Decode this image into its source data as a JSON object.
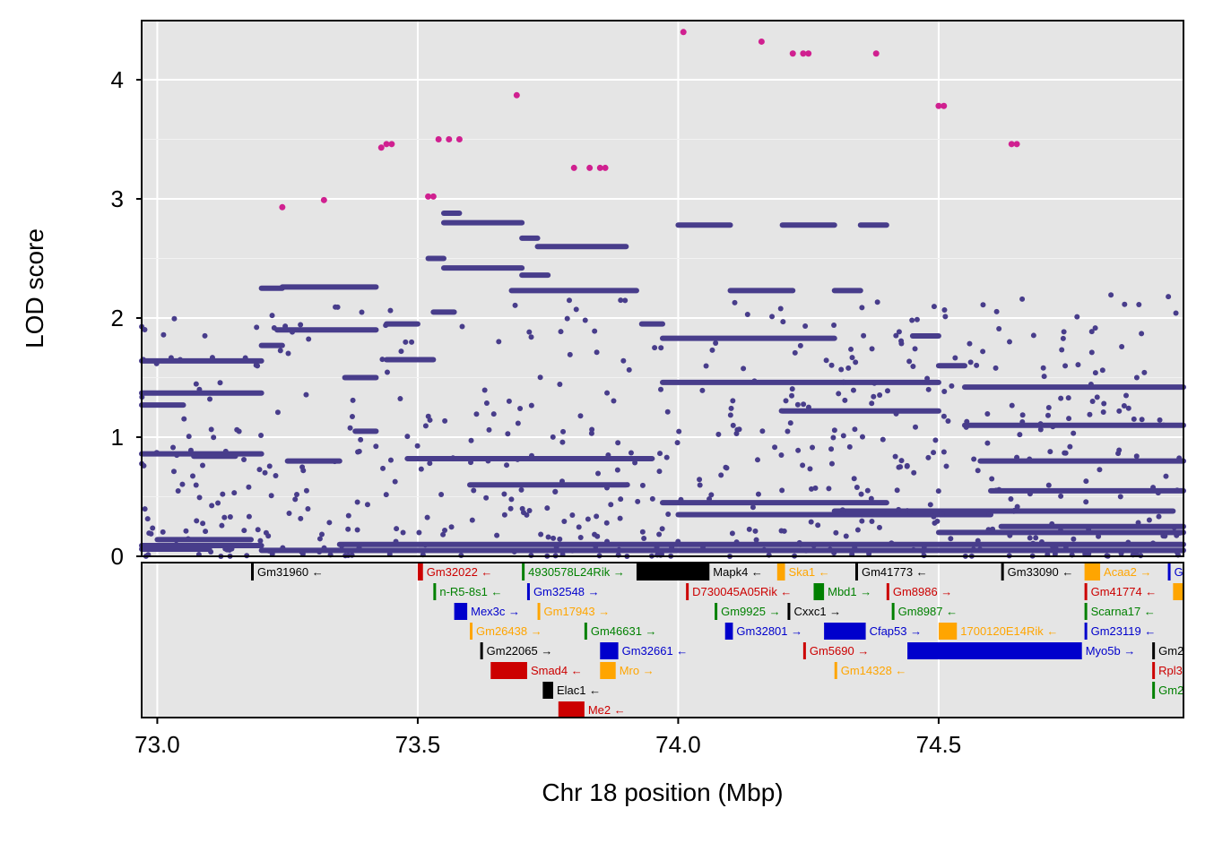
{
  "chart_data": {
    "type": "scatter",
    "title": "",
    "xlabel": "Chr 18 position (Mbp)",
    "ylabel": "LOD score",
    "xlim": [
      72.97,
      74.97
    ],
    "ylim": [
      0,
      4.5
    ],
    "x_ticks": [
      "73.0",
      "73.5",
      "74.0",
      "74.5"
    ],
    "x_tick_values": [
      73.0,
      73.5,
      74.0,
      74.5
    ],
    "y_ticks": [
      "0",
      "1",
      "2",
      "3",
      "4"
    ],
    "y_tick_values": [
      0,
      1,
      2,
      3,
      4
    ],
    "grid": true,
    "colors": {
      "points": "#483d8b",
      "peak_points": "#d02090",
      "panel_bg": "#e5e5e5",
      "grid": "#ffffff"
    },
    "peak_points": [
      [
        73.24,
        2.93
      ],
      [
        73.32,
        2.99
      ],
      [
        73.43,
        3.43
      ],
      [
        73.44,
        3.46
      ],
      [
        73.45,
        3.46
      ],
      [
        73.52,
        3.02
      ],
      [
        73.53,
        3.02
      ],
      [
        73.54,
        3.5
      ],
      [
        73.56,
        3.5
      ],
      [
        73.58,
        3.5
      ],
      [
        73.69,
        3.87
      ],
      [
        73.8,
        3.26
      ],
      [
        73.83,
        3.26
      ],
      [
        73.85,
        3.26
      ],
      [
        73.86,
        3.26
      ],
      [
        74.01,
        4.4
      ],
      [
        74.16,
        4.32
      ],
      [
        74.22,
        4.22
      ],
      [
        74.24,
        4.22
      ],
      [
        74.25,
        4.22
      ],
      [
        74.38,
        4.22
      ],
      [
        74.5,
        3.78
      ],
      [
        74.51,
        3.78
      ],
      [
        74.64,
        3.46
      ],
      [
        74.65,
        3.46
      ]
    ],
    "bands": [
      [
        72.97,
        73.2,
        1.64
      ],
      [
        72.97,
        73.2,
        1.37
      ],
      [
        72.97,
        73.2,
        0.86
      ],
      [
        72.97,
        73.2,
        0.09
      ],
      [
        72.97,
        73.1,
        0.06
      ],
      [
        73.0,
        73.18,
        0.14
      ],
      [
        72.97,
        73.05,
        1.27
      ],
      [
        73.07,
        73.15,
        0.84
      ],
      [
        73.2,
        73.24,
        2.25
      ],
      [
        73.24,
        73.42,
        2.26
      ],
      [
        73.23,
        73.42,
        1.9
      ],
      [
        73.2,
        73.24,
        1.77
      ],
      [
        73.25,
        73.35,
        0.8
      ],
      [
        73.36,
        73.42,
        1.5
      ],
      [
        73.38,
        73.42,
        1.05
      ],
      [
        73.44,
        73.5,
        1.95
      ],
      [
        73.44,
        73.53,
        1.65
      ],
      [
        73.53,
        73.57,
        2.05
      ],
      [
        73.52,
        73.55,
        2.5
      ],
      [
        73.55,
        73.58,
        2.88
      ],
      [
        73.55,
        73.7,
        2.8
      ],
      [
        73.55,
        73.7,
        2.42
      ],
      [
        73.7,
        73.73,
        2.67
      ],
      [
        73.73,
        73.9,
        2.6
      ],
      [
        73.68,
        73.92,
        2.23
      ],
      [
        73.7,
        73.75,
        2.36
      ],
      [
        73.93,
        73.97,
        1.95
      ],
      [
        73.97,
        74.3,
        1.83
      ],
      [
        73.97,
        74.5,
        1.46
      ],
      [
        74.0,
        74.1,
        2.78
      ],
      [
        74.1,
        74.22,
        2.23
      ],
      [
        74.2,
        74.3,
        2.78
      ],
      [
        74.2,
        74.5,
        1.22
      ],
      [
        74.3,
        74.35,
        2.23
      ],
      [
        74.35,
        74.4,
        2.78
      ],
      [
        74.45,
        74.5,
        1.85
      ],
      [
        74.5,
        74.55,
        1.6
      ],
      [
        74.55,
        74.97,
        1.42
      ],
      [
        74.55,
        74.97,
        1.1
      ],
      [
        74.5,
        74.97,
        0.2
      ],
      [
        74.58,
        74.97,
        0.8
      ],
      [
        73.35,
        74.97,
        0.1
      ],
      [
        73.2,
        74.97,
        0.05
      ],
      [
        73.97,
        74.4,
        0.45
      ],
      [
        74.0,
        74.6,
        0.35
      ],
      [
        73.6,
        73.9,
        0.6
      ],
      [
        73.48,
        73.95,
        0.82
      ],
      [
        74.6,
        74.97,
        0.55
      ],
      [
        74.62,
        74.97,
        0.25
      ],
      [
        74.3,
        74.95,
        0.38
      ]
    ]
  },
  "genes": [
    {
      "name": "Gm31960",
      "start": 73.18,
      "end": 73.185,
      "row": 0,
      "dir": "←",
      "color": "#000000"
    },
    {
      "name": "Gm32022",
      "start": 73.5,
      "end": 73.51,
      "row": 0,
      "dir": "←",
      "color": "#cc0000"
    },
    {
      "name": "4930578L24Rik",
      "start": 73.7,
      "end": 73.705,
      "row": 0,
      "dir": "→",
      "color": "#008000"
    },
    {
      "name": "Mapk4",
      "start": 73.92,
      "end": 74.06,
      "row": 0,
      "dir": "←",
      "color": "#000000"
    },
    {
      "name": "Ska1",
      "start": 74.19,
      "end": 74.205,
      "row": 0,
      "dir": "←",
      "color": "#ffa500"
    },
    {
      "name": "Gm41773",
      "start": 74.34,
      "end": 74.345,
      "row": 0,
      "dir": "←",
      "color": "#000000"
    },
    {
      "name": "Gm33090",
      "start": 74.62,
      "end": 74.625,
      "row": 0,
      "dir": "←",
      "color": "#000000"
    },
    {
      "name": "Acaa2",
      "start": 74.78,
      "end": 74.81,
      "row": 0,
      "dir": "→",
      "color": "#ffa500"
    },
    {
      "name": "G",
      "start": 74.94,
      "end": 74.945,
      "row": 0,
      "dir": "",
      "color": "#0000cc"
    },
    {
      "name": "n-R5-8s1",
      "start": 73.53,
      "end": 73.535,
      "row": 1,
      "dir": "←",
      "color": "#008000"
    },
    {
      "name": "Gm32548",
      "start": 73.71,
      "end": 73.715,
      "row": 1,
      "dir": "→",
      "color": "#0000cc"
    },
    {
      "name": "D730045A05Rik",
      "start": 74.015,
      "end": 74.02,
      "row": 1,
      "dir": "←",
      "color": "#cc0000"
    },
    {
      "name": "Mbd1",
      "start": 74.26,
      "end": 74.28,
      "row": 1,
      "dir": "→",
      "color": "#008000"
    },
    {
      "name": "Gm8986",
      "start": 74.4,
      "end": 74.405,
      "row": 1,
      "dir": "→",
      "color": "#cc0000"
    },
    {
      "name": "Gm41774",
      "start": 74.78,
      "end": 74.785,
      "row": 1,
      "dir": "←",
      "color": "#cc0000"
    },
    {
      "name": "",
      "start": 74.95,
      "end": 74.97,
      "row": 1,
      "dir": "",
      "color": "#ffa500"
    },
    {
      "name": "Mex3c",
      "start": 73.57,
      "end": 73.595,
      "row": 2,
      "dir": "→",
      "color": "#0000cc"
    },
    {
      "name": "Gm17943",
      "start": 73.73,
      "end": 73.735,
      "row": 2,
      "dir": "→",
      "color": "#ffa500"
    },
    {
      "name": "Gm9925",
      "start": 74.07,
      "end": 74.075,
      "row": 2,
      "dir": "→",
      "color": "#008000"
    },
    {
      "name": "Cxxc1",
      "start": 74.21,
      "end": 74.215,
      "row": 2,
      "dir": "→",
      "color": "#000000"
    },
    {
      "name": "Gm8987",
      "start": 74.41,
      "end": 74.415,
      "row": 2,
      "dir": "←",
      "color": "#008000"
    },
    {
      "name": "Scarna17",
      "start": 74.78,
      "end": 74.785,
      "row": 2,
      "dir": "←",
      "color": "#008000"
    },
    {
      "name": "Gm26438",
      "start": 73.6,
      "end": 73.605,
      "row": 3,
      "dir": "→",
      "color": "#ffa500"
    },
    {
      "name": "Gm46631",
      "start": 73.82,
      "end": 73.825,
      "row": 3,
      "dir": "→",
      "color": "#008000"
    },
    {
      "name": "Gm32801",
      "start": 74.09,
      "end": 74.105,
      "row": 3,
      "dir": "→",
      "color": "#0000cc"
    },
    {
      "name": "Cfap53",
      "start": 74.28,
      "end": 74.36,
      "row": 3,
      "dir": "→",
      "color": "#0000cc"
    },
    {
      "name": "1700120E14Rik",
      "start": 74.5,
      "end": 74.535,
      "row": 3,
      "dir": "←",
      "color": "#ffa500"
    },
    {
      "name": "Gm23119",
      "start": 74.78,
      "end": 74.785,
      "row": 3,
      "dir": "←",
      "color": "#0000cc"
    },
    {
      "name": "Gm22065",
      "start": 73.62,
      "end": 73.625,
      "row": 4,
      "dir": "→",
      "color": "#000000"
    },
    {
      "name": "Gm32661",
      "start": 73.85,
      "end": 73.885,
      "row": 4,
      "dir": "←",
      "color": "#0000cc"
    },
    {
      "name": "Gm5690",
      "start": 74.24,
      "end": 74.245,
      "row": 4,
      "dir": "→",
      "color": "#cc0000"
    },
    {
      "name": "Myo5b",
      "start": 74.44,
      "end": 74.775,
      "row": 4,
      "dir": "→",
      "color": "#0000cc"
    },
    {
      "name": "Gm2",
      "start": 74.91,
      "end": 74.915,
      "row": 4,
      "dir": "",
      "color": "#000000"
    },
    {
      "name": "Smad4",
      "start": 73.64,
      "end": 73.71,
      "row": 5,
      "dir": "←",
      "color": "#cc0000"
    },
    {
      "name": "Mro",
      "start": 73.85,
      "end": 73.88,
      "row": 5,
      "dir": "→",
      "color": "#ffa500"
    },
    {
      "name": "Gm14328",
      "start": 74.3,
      "end": 74.305,
      "row": 5,
      "dir": "←",
      "color": "#ffa500"
    },
    {
      "name": "Rpl3",
      "start": 74.91,
      "end": 74.915,
      "row": 5,
      "dir": "",
      "color": "#cc0000"
    },
    {
      "name": "Elac1",
      "start": 73.74,
      "end": 73.76,
      "row": 6,
      "dir": "←",
      "color": "#000000"
    },
    {
      "name": "Gm2",
      "start": 74.91,
      "end": 74.915,
      "row": 6,
      "dir": "",
      "color": "#008000"
    },
    {
      "name": "Me2",
      "start": 73.77,
      "end": 73.82,
      "row": 7,
      "dir": "←",
      "color": "#cc0000"
    }
  ]
}
